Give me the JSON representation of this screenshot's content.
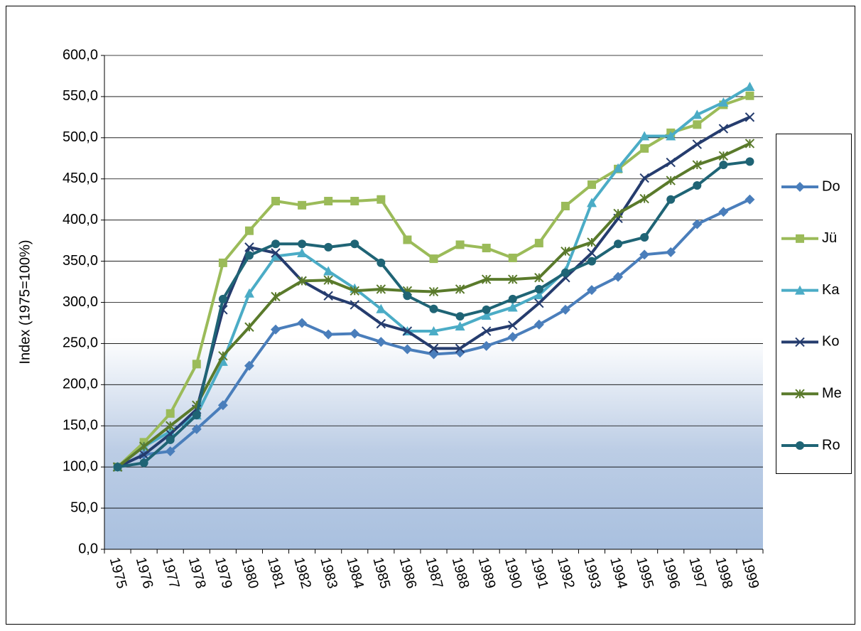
{
  "chart_data": {
    "type": "line",
    "y_label": "Index (1975=100%)",
    "categories": [
      "1975",
      "1976",
      "1977",
      "1978",
      "1979",
      "1980",
      "1981",
      "1982",
      "1983",
      "1984",
      "1985",
      "1986",
      "1987",
      "1988",
      "1989",
      "1990",
      "1991",
      "1992",
      "1993",
      "1994",
      "1995",
      "1996",
      "1997",
      "1998",
      "1999"
    ],
    "ylim": [
      0,
      600
    ],
    "yticks": [
      {
        "value": 0,
        "label": "0,0"
      },
      {
        "value": 50,
        "label": "50,0"
      },
      {
        "value": 100,
        "label": "100,0"
      },
      {
        "value": 150,
        "label": "150,0"
      },
      {
        "value": 200,
        "label": "200,0"
      },
      {
        "value": 250,
        "label": "250,0"
      },
      {
        "value": 300,
        "label": "300,0"
      },
      {
        "value": 350,
        "label": "350,0"
      },
      {
        "value": 400,
        "label": "400,0"
      },
      {
        "value": 450,
        "label": "450,0"
      },
      {
        "value": 500,
        "label": "500,0"
      },
      {
        "value": 550,
        "label": "550,0"
      },
      {
        "value": 600,
        "label": "600,0"
      }
    ],
    "grid": true,
    "legend": "right",
    "series": [
      {
        "name": "Do",
        "color": "#4a7ebb",
        "marker": "diamond",
        "values": [
          100,
          115,
          119,
          146,
          175,
          223,
          267,
          275,
          261,
          262,
          252,
          243,
          237,
          239,
          247,
          258,
          273,
          291,
          315,
          331,
          358,
          361,
          395,
          410,
          425
        ]
      },
      {
        "name": "Jü",
        "color": "#9bbb59",
        "marker": "square",
        "values": [
          100,
          130,
          165,
          225,
          348,
          387,
          423,
          418,
          423,
          423,
          425,
          376,
          353,
          370,
          366,
          354,
          372,
          417,
          443,
          462,
          487,
          506,
          516,
          540,
          551
        ]
      },
      {
        "name": "Ka",
        "color": "#4bacc6",
        "marker": "triangle",
        "values": [
          100,
          125,
          143,
          163,
          228,
          311,
          356,
          360,
          338,
          317,
          292,
          265,
          265,
          271,
          284,
          294,
          309,
          338,
          421,
          463,
          502,
          502,
          528,
          543,
          562
        ]
      },
      {
        "name": "Ko",
        "color": "#253c6e",
        "marker": "x",
        "values": [
          100,
          115,
          140,
          170,
          291,
          367,
          360,
          326,
          308,
          297,
          274,
          265,
          244,
          244,
          265,
          272,
          299,
          330,
          360,
          402,
          451,
          470,
          492,
          511,
          525
        ]
      },
      {
        "name": "Me",
        "color": "#5a7a2b",
        "marker": "star",
        "values": [
          100,
          125,
          150,
          175,
          235,
          270,
          307,
          326,
          327,
          314,
          316,
          314,
          313,
          316,
          328,
          328,
          330,
          362,
          373,
          408,
          426,
          448,
          467,
          478,
          493
        ]
      },
      {
        "name": "Ro",
        "color": "#1f6475",
        "marker": "circle",
        "values": [
          100,
          105,
          133,
          163,
          304,
          357,
          371,
          371,
          367,
          371,
          348,
          308,
          292,
          283,
          291,
          304,
          316,
          336,
          350,
          371,
          379,
          425,
          442,
          467,
          471
        ]
      }
    ]
  }
}
